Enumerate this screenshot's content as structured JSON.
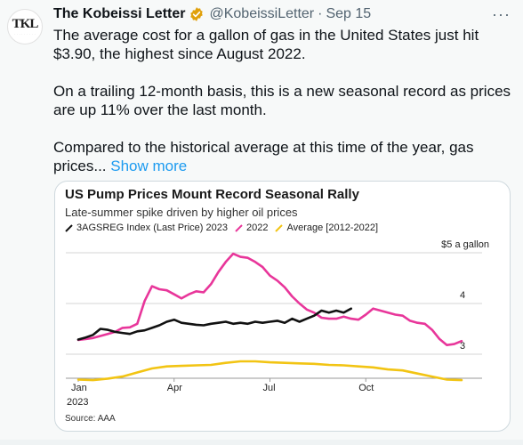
{
  "tweet": {
    "author_name": "The Kobeissi Letter",
    "author_handle": "@KobeissiLetter",
    "date": "Sep 15",
    "avatar_text": "TKL",
    "more_icon": "···",
    "paragraphs": [
      "The average cost for a gallon of gas in the United States just hit $3.90, the highest since August 2022.",
      "On a trailing 12-month basis, this is a new seasonal record as prices are up 11% over the last month."
    ],
    "paragraph3": "Compared to the historical average at this time of the year, gas prices...",
    "show_more": "Show more",
    "verified_color": "#e0a00b"
  },
  "chart_data": {
    "type": "line",
    "title": "US Pump Prices Mount Record Seasonal Rally",
    "subtitle": "Late-summer spike driven by higher oil prices",
    "units_label": "$5 a gallon",
    "source": "Source: AAA",
    "x_ticks": [
      {
        "label": "Jan",
        "week": 0
      },
      {
        "label": "Apr",
        "week": 13
      },
      {
        "label": "Jul",
        "week": 26
      },
      {
        "label": "Oct",
        "week": 39
      }
    ],
    "x_year_label": "2023",
    "y_ticks": [
      3,
      4,
      5
    ],
    "ylim": [
      2.2,
      5.0
    ],
    "xlim": [
      0,
      52
    ],
    "series": [
      {
        "name": "3AGSREG Index (Last Price) 2023",
        "color": "#111111",
        "x": [
          0,
          1,
          2,
          3,
          4,
          5,
          6,
          7,
          8,
          9,
          10,
          11,
          12,
          13,
          14,
          15,
          16,
          17,
          18,
          19,
          20,
          21,
          22,
          23,
          24,
          25,
          26,
          27,
          28,
          29,
          30,
          31,
          32,
          33,
          34,
          35,
          36,
          37
        ],
        "y": [
          3.29,
          3.33,
          3.38,
          3.5,
          3.48,
          3.44,
          3.42,
          3.4,
          3.45,
          3.47,
          3.52,
          3.57,
          3.64,
          3.68,
          3.62,
          3.6,
          3.58,
          3.57,
          3.6,
          3.62,
          3.64,
          3.6,
          3.62,
          3.6,
          3.64,
          3.62,
          3.64,
          3.66,
          3.62,
          3.7,
          3.64,
          3.7,
          3.76,
          3.86,
          3.82,
          3.86,
          3.82,
          3.9
        ]
      },
      {
        "name": "2022",
        "color": "#e8369a",
        "x": [
          0,
          1,
          2,
          3,
          4,
          5,
          6,
          7,
          8,
          9,
          10,
          11,
          12,
          13,
          14,
          15,
          16,
          17,
          18,
          19,
          20,
          21,
          22,
          23,
          24,
          25,
          26,
          27,
          28,
          29,
          30,
          31,
          32,
          33,
          34,
          35,
          36,
          37,
          38,
          39,
          40,
          41,
          42,
          43,
          44,
          45,
          46,
          47,
          48,
          49,
          50,
          51,
          52
        ],
        "y": [
          3.28,
          3.3,
          3.32,
          3.36,
          3.4,
          3.44,
          3.52,
          3.53,
          3.6,
          4.05,
          4.34,
          4.28,
          4.26,
          4.18,
          4.1,
          4.18,
          4.24,
          4.22,
          4.38,
          4.62,
          4.82,
          4.98,
          4.92,
          4.9,
          4.82,
          4.72,
          4.55,
          4.45,
          4.32,
          4.14,
          4.0,
          3.88,
          3.82,
          3.72,
          3.7,
          3.7,
          3.74,
          3.7,
          3.68,
          3.78,
          3.9,
          3.86,
          3.82,
          3.78,
          3.76,
          3.66,
          3.62,
          3.6,
          3.48,
          3.3,
          3.18,
          3.2,
          3.26
        ]
      },
      {
        "name": "Average [2012-2022]",
        "color": "#f2c413",
        "x": [
          0,
          2,
          4,
          6,
          8,
          10,
          12,
          14,
          16,
          18,
          20,
          22,
          24,
          26,
          28,
          30,
          32,
          34,
          36,
          38,
          40,
          42,
          44,
          46,
          48,
          50,
          52
        ],
        "y": [
          2.5,
          2.49,
          2.52,
          2.56,
          2.64,
          2.72,
          2.76,
          2.77,
          2.78,
          2.79,
          2.83,
          2.86,
          2.86,
          2.84,
          2.83,
          2.82,
          2.81,
          2.79,
          2.78,
          2.76,
          2.74,
          2.7,
          2.68,
          2.62,
          2.56,
          2.5,
          2.49
        ]
      }
    ]
  }
}
